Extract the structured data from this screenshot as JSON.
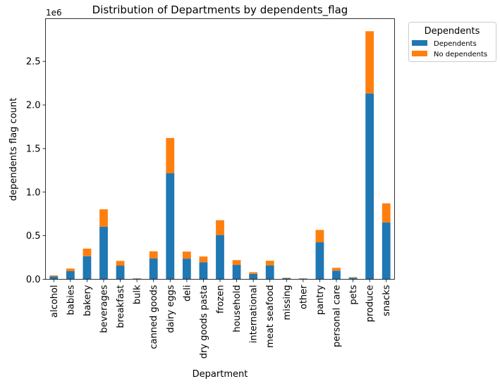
{
  "chart_data": {
    "type": "bar",
    "stacked": true,
    "title": "Distribution of Departments by dependents_flag",
    "xlabel": "Department",
    "ylabel": "dependents flag count",
    "y_offset_label": "1e6",
    "ylim": [
      0,
      2.99
    ],
    "yticks": [
      0.0,
      0.5,
      1.0,
      1.5,
      2.0,
      2.5
    ],
    "ytick_labels": [
      "0.0",
      "0.5",
      "1.0",
      "1.5",
      "2.0",
      "2.5"
    ],
    "grid": false,
    "legend": {
      "title": "Dependents",
      "placement": "outside-top-right"
    },
    "categories": [
      "alcohol",
      "babies",
      "bakery",
      "beverages",
      "breakfast",
      "bulk",
      "canned goods",
      "dairy eggs",
      "deli",
      "dry goods pasta",
      "frozen",
      "household",
      "international",
      "meat seafood",
      "missing",
      "other",
      "pantry",
      "personal care",
      "pets",
      "produce",
      "snacks"
    ],
    "series": [
      {
        "name": "Dependents",
        "color": "#1f77b4",
        "values": [
          0.033,
          0.093,
          0.265,
          0.604,
          0.157,
          0.008,
          0.239,
          1.216,
          0.237,
          0.196,
          0.508,
          0.165,
          0.061,
          0.16,
          0.013,
          0.008,
          0.424,
          0.099,
          0.018,
          2.132,
          0.652
        ]
      },
      {
        "name": "No dependents",
        "color": "#ff7f0e",
        "values": [
          0.011,
          0.03,
          0.087,
          0.199,
          0.054,
          0.002,
          0.082,
          0.405,
          0.081,
          0.065,
          0.17,
          0.055,
          0.02,
          0.053,
          0.005,
          0.002,
          0.142,
          0.033,
          0.006,
          0.714,
          0.219
        ]
      }
    ]
  }
}
